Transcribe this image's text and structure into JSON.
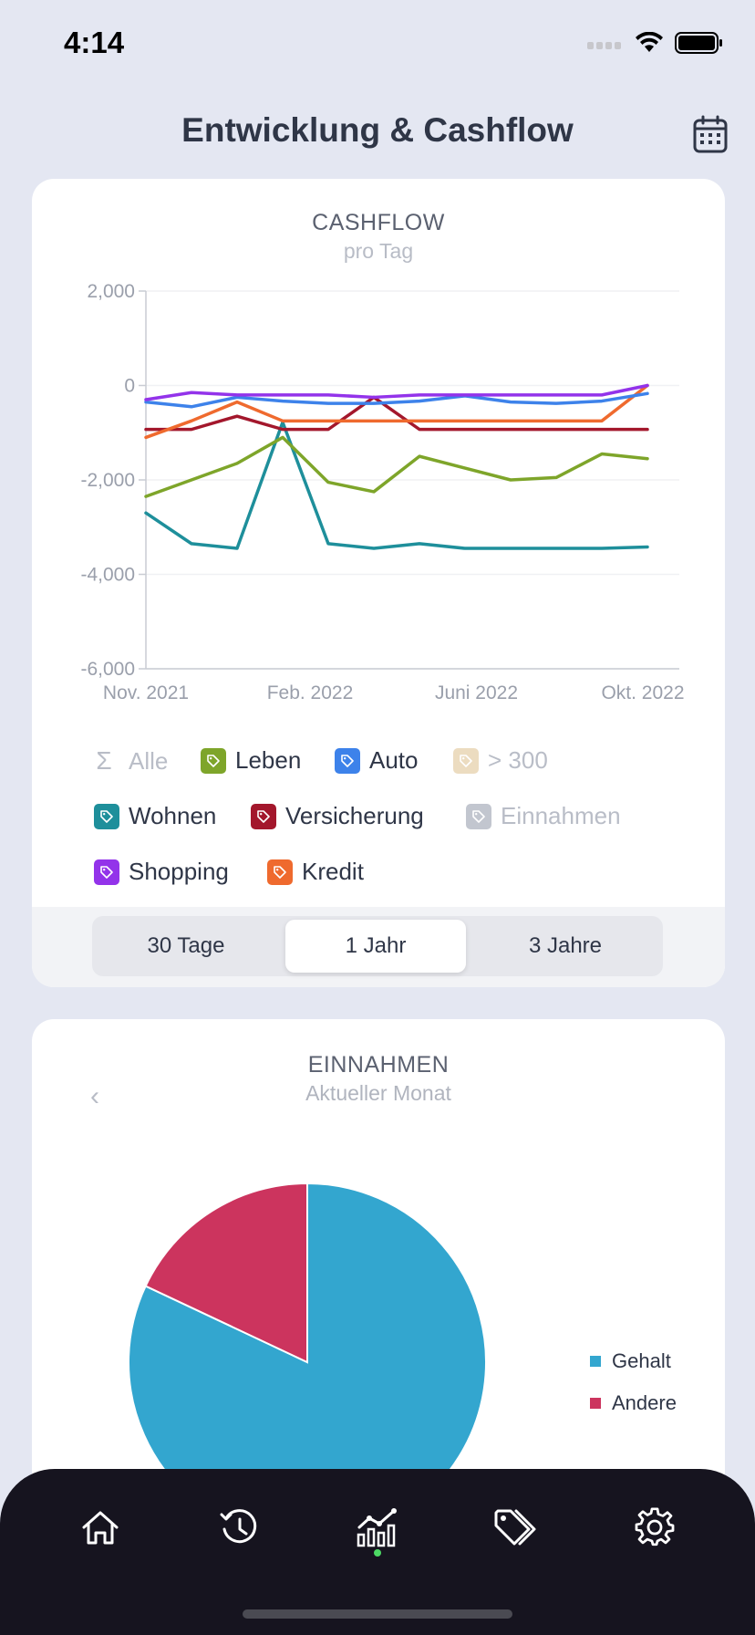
{
  "status_bar": {
    "time": "4:14"
  },
  "header": {
    "title": "Entwicklung & Cashflow",
    "calendar_icon": "calendar-icon"
  },
  "cashflow_card": {
    "title": "CASHFLOW",
    "subtitle": "pro Tag",
    "legend": [
      {
        "name": "Alle",
        "color": "#b9bdc7",
        "icon": "sigma-icon",
        "active": false
      },
      {
        "name": "Leben",
        "color": "#7ea52a",
        "icon": "tag-icon",
        "active": true
      },
      {
        "name": "Auto",
        "color": "#3d82ea",
        "icon": "tag-icon",
        "active": true
      },
      {
        "name": "> 300",
        "color": "#ecdcc0",
        "icon": "tag-icon",
        "active": false
      },
      {
        "name": "Wohnen",
        "color": "#1e8f9b",
        "icon": "tag-icon",
        "active": true
      },
      {
        "name": "Versicherung",
        "color": "#a3172c",
        "icon": "tag-icon",
        "active": true
      },
      {
        "name": "Einnahmen",
        "color": "#c2c6cf",
        "icon": "tag-icon",
        "active": false
      },
      {
        "name": "Shopping",
        "color": "#9333ea",
        "icon": "tag-icon",
        "active": true
      },
      {
        "name": "Kredit",
        "color": "#ef6a2e",
        "icon": "tag-icon",
        "active": true
      }
    ],
    "segments": [
      {
        "label": "30 Tage",
        "active": false
      },
      {
        "label": "1 Jahr",
        "active": true
      },
      {
        "label": "3 Jahre",
        "active": false
      }
    ]
  },
  "chart_data": [
    {
      "type": "line",
      "title": "CASHFLOW",
      "subtitle": "pro Tag",
      "ylim": [
        -6000,
        2000
      ],
      "yticks": [
        2000,
        0,
        -2000,
        -4000,
        -6000
      ],
      "ytick_labels": [
        "2,000",
        "0",
        "-2,000",
        "-4,000",
        "-6,000"
      ],
      "xlim": [
        0,
        11
      ],
      "xticks": [
        0,
        3.6,
        7.25,
        10.9
      ],
      "xtick_labels": [
        "Nov. 2021",
        "Feb. 2022",
        "Juni 2022",
        "Okt. 2022"
      ],
      "grid": true,
      "x": [
        0,
        1,
        2,
        3,
        4,
        5,
        6,
        7,
        8,
        9,
        10,
        11
      ],
      "series": [
        {
          "name": "Wohnen",
          "color": "#1e8f9b",
          "values": [
            -2700,
            -3350,
            -3450,
            -780,
            -3350,
            -3450,
            -3350,
            -3450,
            -3450,
            -3450,
            -3450,
            -3420
          ]
        },
        {
          "name": "Leben",
          "color": "#7ea52a",
          "values": [
            -2350,
            -2000,
            -1650,
            -1100,
            -2050,
            -2250,
            -1500,
            -1750,
            -2000,
            -1950,
            -1450,
            -1550
          ]
        },
        {
          "name": "Versicherung",
          "color": "#a3172c",
          "values": [
            -930,
            -930,
            -650,
            -930,
            -930,
            -250,
            -930,
            -930,
            -930,
            -930,
            -930,
            -930
          ]
        },
        {
          "name": "Kredit",
          "color": "#ef6a2e",
          "values": [
            -1100,
            -750,
            -350,
            -750,
            -750,
            -750,
            -750,
            -750,
            -750,
            -750,
            -750,
            0
          ]
        },
        {
          "name": "Auto",
          "color": "#3d82ea",
          "values": [
            -350,
            -450,
            -250,
            -330,
            -380,
            -380,
            -330,
            -220,
            -350,
            -380,
            -330,
            -170
          ]
        },
        {
          "name": "Shopping",
          "color": "#9333ea",
          "values": [
            -300,
            -150,
            -200,
            -200,
            -200,
            -250,
            -200,
            -200,
            -200,
            -200,
            -200,
            0
          ]
        }
      ]
    },
    {
      "type": "pie",
      "title": "EINNAHMEN",
      "subtitle": "Aktueller Monat",
      "legend_position": "right",
      "slices": [
        {
          "name": "Gehalt",
          "value": 82,
          "color": "#33a6cf"
        },
        {
          "name": "Andere",
          "value": 18,
          "color": "#cc345e"
        }
      ]
    }
  ],
  "einnahmen_card": {
    "title": "EINNAHMEN",
    "subtitle": "Aktueller Monat",
    "back_chevron": "‹",
    "legend": [
      {
        "name": "Gehalt",
        "color": "#33a6cf"
      },
      {
        "name": "Andere",
        "color": "#cc345e"
      }
    ]
  },
  "tab_bar": {
    "tabs": [
      {
        "icon": "home-icon",
        "active": false
      },
      {
        "icon": "history-icon",
        "active": false
      },
      {
        "icon": "chart-icon",
        "active": true
      },
      {
        "icon": "tags-icon",
        "active": false
      },
      {
        "icon": "gear-icon",
        "active": false
      }
    ],
    "active_color": "#4cd964"
  }
}
